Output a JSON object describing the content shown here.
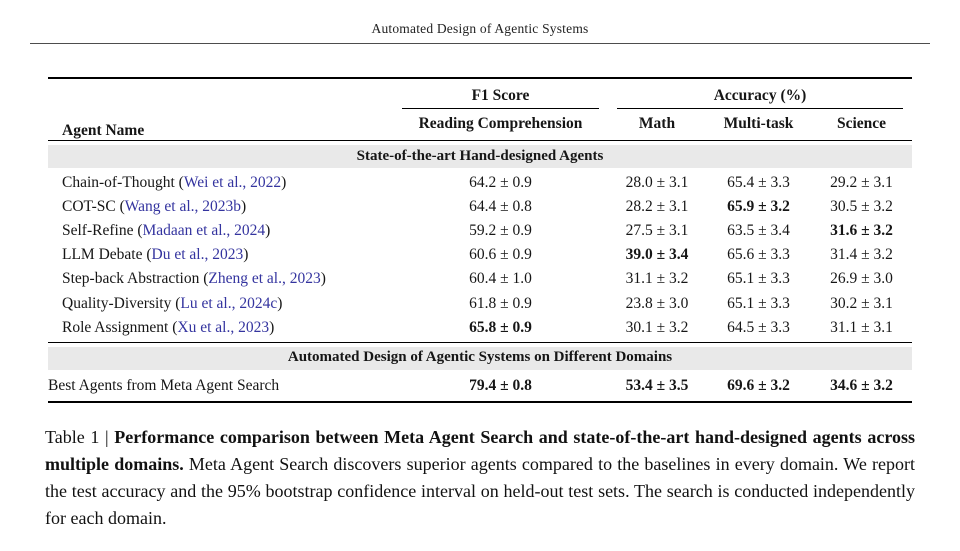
{
  "page_header": {
    "title": "Automated Design of Agentic Systems"
  },
  "table": {
    "headers": {
      "agent_name": "Agent Name",
      "f1_group": "F1 Score",
      "accuracy_group": "Accuracy (%)",
      "sub": [
        "Reading Comprehension",
        "Math",
        "Multi-task",
        "Science"
      ]
    },
    "section1": "State-of-the-art Hand-designed Agents",
    "section2": "Automated Design of Agentic Systems on Different Domains",
    "rows": [
      {
        "name_pre": "Chain-of-Thought (",
        "cite": "Wei et al., 2022",
        "name_post": ")",
        "f1": "64.2 ± 0.9",
        "math": "28.0 ± 3.1",
        "multi": "65.4 ± 3.3",
        "science": "29.2 ± 3.1"
      },
      {
        "name_pre": "COT-SC (",
        "cite": "Wang et al., 2023b",
        "name_post": ")",
        "f1": "64.4 ± 0.8",
        "math": "28.2 ± 3.1",
        "multi": "65.9 ± 3.2",
        "science": "30.5 ± 3.2"
      },
      {
        "name_pre": "Self-Refine (",
        "cite": "Madaan et al., 2024",
        "name_post": ")",
        "f1": "59.2 ± 0.9",
        "math": "27.5 ± 3.1",
        "multi": "63.5 ± 3.4",
        "science": "31.6 ± 3.2"
      },
      {
        "name_pre": "LLM Debate (",
        "cite": "Du et al., 2023",
        "name_post": ")",
        "f1": "60.6 ± 0.9",
        "math": "39.0 ± 3.4",
        "multi": "65.6 ± 3.3",
        "science": "31.4 ± 3.2"
      },
      {
        "name_pre": "Step-back Abstraction (",
        "cite": "Zheng et al., 2023",
        "name_post": ")",
        "f1": "60.4 ± 1.0",
        "math": "31.1 ± 3.2",
        "multi": "65.1 ± 3.3",
        "science": "26.9 ± 3.0"
      },
      {
        "name_pre": "Quality-Diversity (",
        "cite": "Lu et al., 2024c",
        "name_post": ")",
        "f1": "61.8 ± 0.9",
        "math": "23.8 ± 3.0",
        "multi": "65.1 ± 3.3",
        "science": "30.2 ± 3.1"
      },
      {
        "name_pre": "Role Assignment (",
        "cite": "Xu et al., 2023",
        "name_post": ")",
        "f1": "65.8 ± 0.9",
        "math": "30.1 ± 3.2",
        "multi": "64.5 ± 3.3",
        "science": "31.1 ± 3.1"
      }
    ],
    "final_row": {
      "name": "Best Agents from Meta Agent Search",
      "f1": "79.4 ± 0.8",
      "math": "53.4 ± 3.5",
      "multi": "69.6 ± 3.2",
      "science": "34.6 ± 3.2"
    }
  },
  "caption": {
    "label": "Table 1 | ",
    "bold": "Performance comparison between Meta Agent Search and state-of-the-art hand-designed agents across multiple domains.",
    "rest": " Meta Agent Search discovers superior agents compared to the baselines in every domain. We report the test accuracy and the 95% bootstrap confidence interval on held-out test sets. The search is conducted independently for each domain."
  },
  "colors": {
    "citation_link": "#34349f",
    "section_band": "#e9e9e9",
    "rule": "#000000"
  }
}
